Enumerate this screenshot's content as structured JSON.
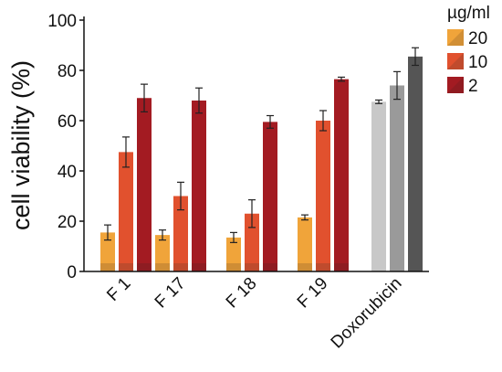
{
  "chart_data": {
    "type": "bar",
    "ylabel": "cell viability (%)",
    "ylim": [
      0,
      100
    ],
    "yticks": [
      0,
      20,
      40,
      60,
      80,
      100
    ],
    "grid": false,
    "categories": [
      "F 1",
      "F 17",
      "F 18",
      "F 19",
      "Doxorubicin"
    ],
    "legend": {
      "title": "µg/ml",
      "placement": "top-right",
      "entries": [
        "20",
        "10",
        "2"
      ]
    },
    "series": [
      {
        "name": "20",
        "values": [
          15.5,
          14.5,
          13.5,
          21.5,
          67.5
        ],
        "errors": [
          3,
          2,
          2,
          1,
          0.7
        ]
      },
      {
        "name": "10",
        "values": [
          47.5,
          30,
          23,
          60,
          74
        ],
        "errors": [
          6,
          5.5,
          5.5,
          4,
          5.5
        ]
      },
      {
        "name": "2",
        "values": [
          69,
          68,
          59.5,
          76.5,
          85.5
        ],
        "errors": [
          5.5,
          5,
          2.5,
          0.8,
          3.5
        ]
      }
    ],
    "colors": {
      "series": [
        "#f0a43a",
        "#e1512e",
        "#a31b22"
      ],
      "doxorubicin": [
        "#c8c8c8",
        "#9a9a9a",
        "#555555"
      ],
      "bar_base": [
        "#c98a35",
        "#b84a2d",
        "#8b1c22"
      ],
      "axis": "#111111"
    }
  }
}
